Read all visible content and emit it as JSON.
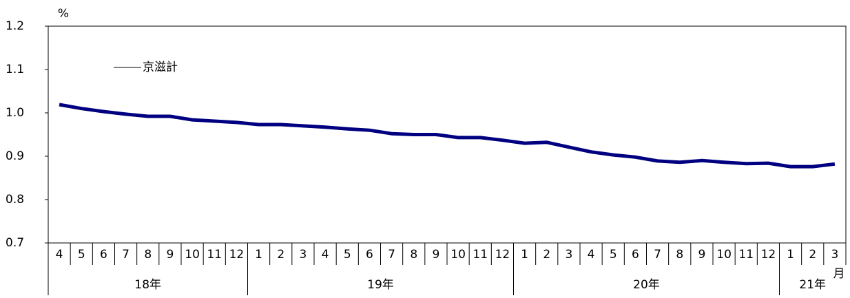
{
  "chart_data": {
    "type": "line",
    "y_unit_label": "%",
    "x_unit_label": "月",
    "categories": [
      "4",
      "5",
      "6",
      "7",
      "8",
      "9",
      "10",
      "11",
      "12",
      "1",
      "2",
      "3",
      "4",
      "5",
      "6",
      "7",
      "8",
      "9",
      "10",
      "11",
      "12",
      "1",
      "2",
      "3",
      "4",
      "5",
      "6",
      "7",
      "8",
      "9",
      "10",
      "11",
      "12",
      "1",
      "2",
      "3"
    ],
    "year_groups": [
      {
        "label": "18年",
        "span": 9
      },
      {
        "label": "19年",
        "span": 12
      },
      {
        "label": "20年",
        "span": 12
      },
      {
        "label": "21年",
        "span": 3
      }
    ],
    "series": [
      {
        "name": "京滋計",
        "color": "#000080",
        "values": [
          1.019,
          1.01,
          1.003,
          0.997,
          0.992,
          0.992,
          0.984,
          0.981,
          0.978,
          0.973,
          0.973,
          0.97,
          0.967,
          0.963,
          0.96,
          0.952,
          0.95,
          0.95,
          0.943,
          0.943,
          0.937,
          0.93,
          0.932,
          0.921,
          0.91,
          0.903,
          0.898,
          0.889,
          0.886,
          0.89,
          0.886,
          0.883,
          0.884,
          0.876,
          0.876,
          0.882
        ]
      }
    ],
    "ylim": [
      0.7,
      1.2
    ],
    "yticks": [
      0.7,
      0.8,
      0.9,
      {
        "value": 1.0,
        "label": "1.0"
      },
      1.1,
      1.2
    ],
    "grid": false
  }
}
